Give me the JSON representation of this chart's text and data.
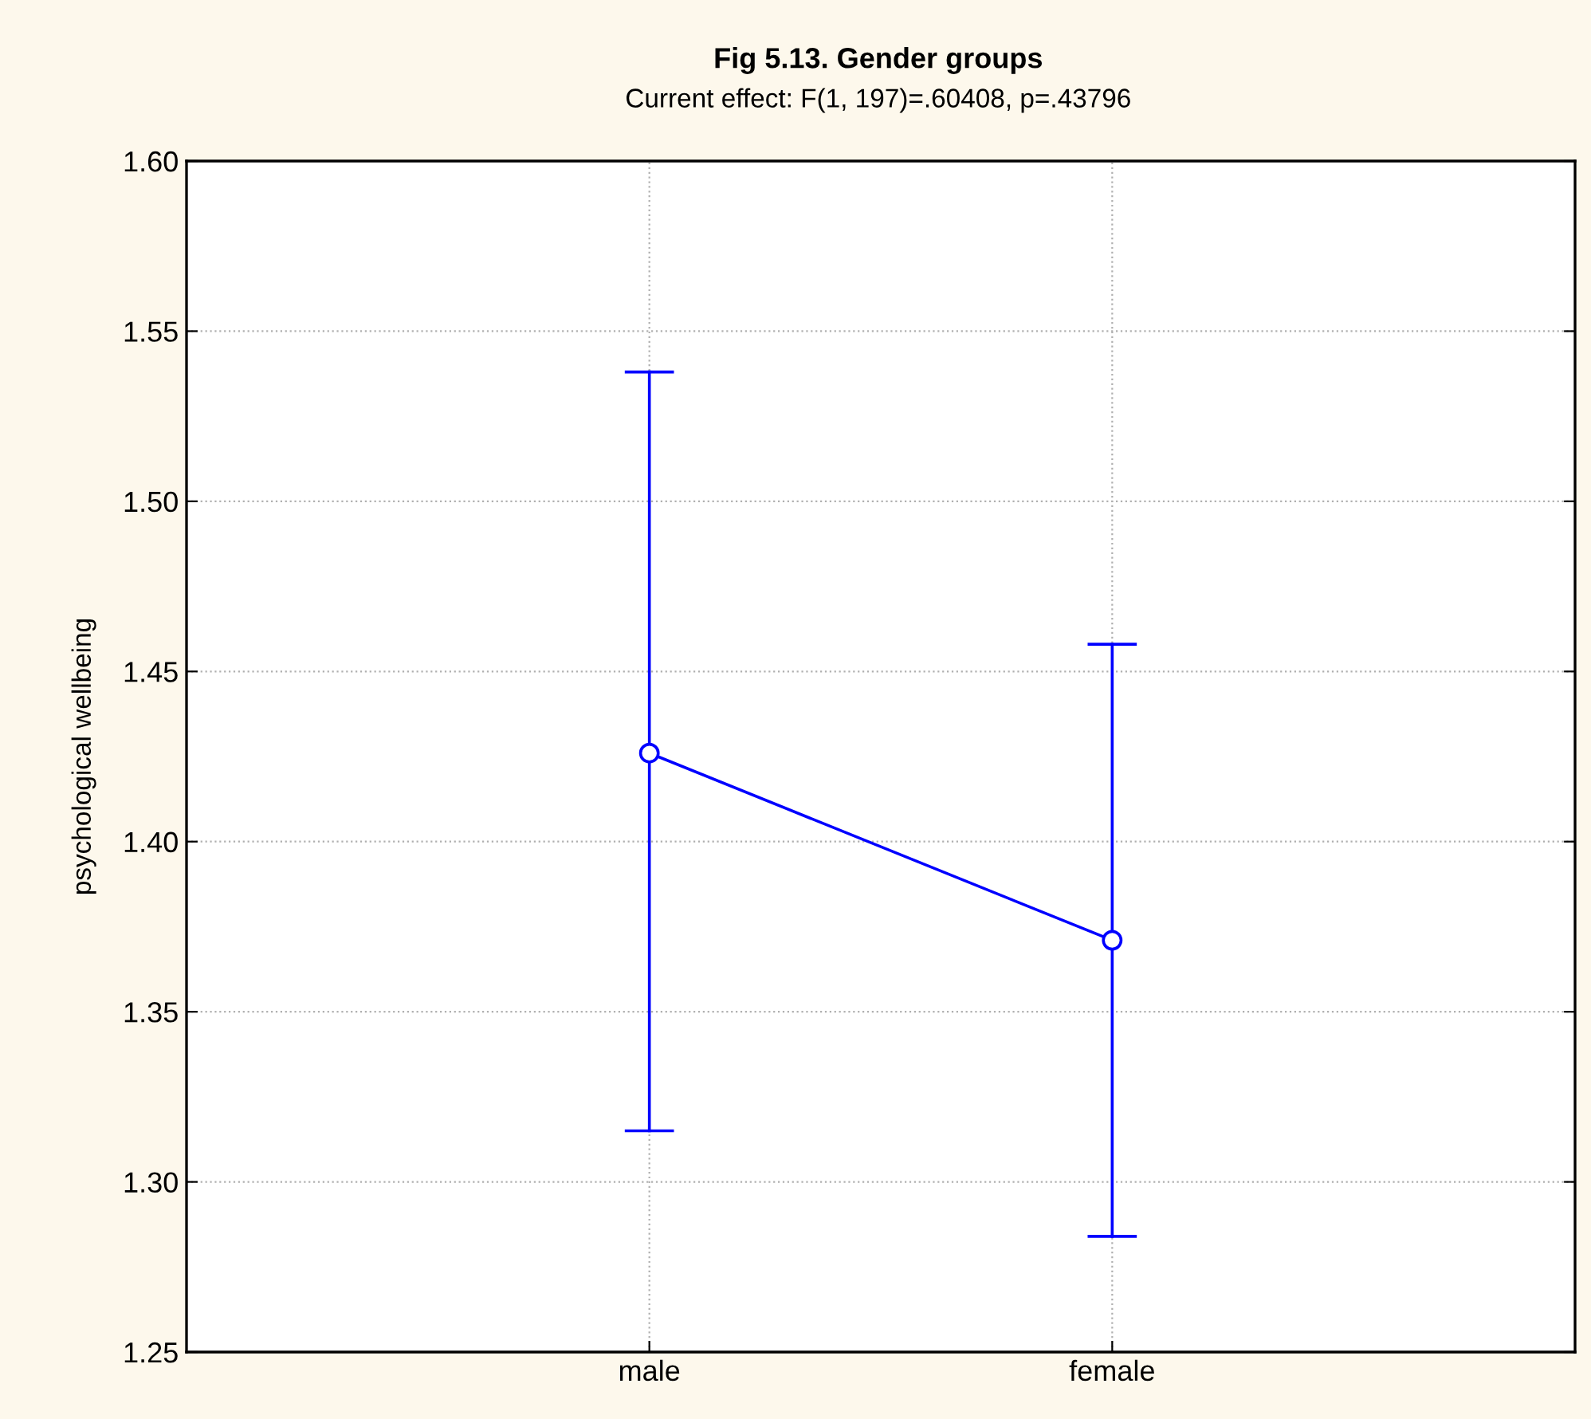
{
  "chart_data": {
    "type": "line",
    "title": "Fig 5.13. Gender groups",
    "subtitle": "Current effect: F(1, 197)=.60408, p=.43796",
    "ylabel": "psychological wellbeing",
    "categories": [
      "male",
      "female"
    ],
    "series": [
      {
        "color": "#0000ff",
        "values": [
          1.426,
          1.371
        ],
        "errors": [
          [
            1.315,
            1.538
          ],
          [
            1.284,
            1.458
          ]
        ]
      }
    ],
    "ylim": [
      1.25,
      1.6
    ],
    "yticks": [
      {
        "value": 1.25,
        "label": "1.25"
      },
      {
        "value": 1.3,
        "label": "1.30"
      },
      {
        "value": 1.35,
        "label": "1.35"
      },
      {
        "value": 1.4,
        "label": "1.40"
      },
      {
        "value": 1.45,
        "label": "1.45"
      },
      {
        "value": 1.5,
        "label": "1.50"
      },
      {
        "value": 1.55,
        "label": "1.55"
      },
      {
        "value": 1.6,
        "label": "1.60"
      }
    ],
    "grid": true,
    "marker": "circle",
    "line_style": "solid",
    "legend": false
  }
}
